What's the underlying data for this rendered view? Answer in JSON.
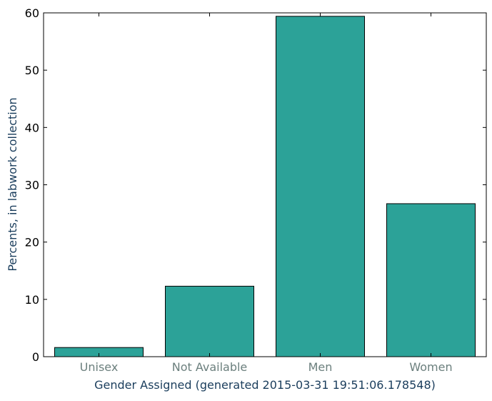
{
  "chart_data": {
    "type": "bar",
    "title": "",
    "xlabel": "Gender Assigned (generated 2015-03-31 19:51:06.178548)",
    "ylabel": "Percents, in labwork collection",
    "categories": [
      "Unisex",
      "Not Available",
      "Men",
      "Women"
    ],
    "values": [
      1.6,
      12.3,
      59.4,
      26.7
    ],
    "ylim": [
      0,
      60
    ],
    "yticks": [
      0,
      10,
      20,
      30,
      40,
      50,
      60
    ],
    "grid": false,
    "legend": "none"
  },
  "colors": {
    "bar_fill": "#2ca298",
    "bar_edge": "#000000",
    "axis_label": "#1a3d5c",
    "category_tick_label": "#6b7f7d",
    "value_tick_label": "#000000"
  }
}
